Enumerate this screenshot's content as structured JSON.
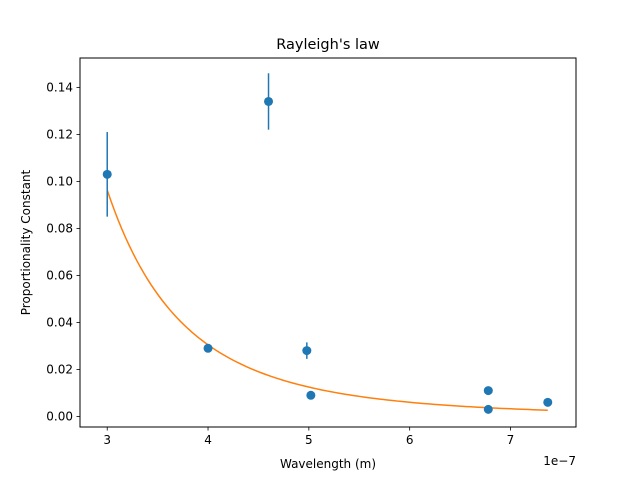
{
  "chart_data": {
    "type": "scatter",
    "title": "Rayleigh's law",
    "xlabel": "Wavelength (m)",
    "ylabel": "Proportionality Constant",
    "x_offset_label": "1e−7",
    "xlim": [
      2.73,
      7.65
    ],
    "ylim": [
      -0.0045,
      0.1525
    ],
    "x_ticks": [
      3,
      4,
      5,
      6,
      7
    ],
    "x_tick_labels": [
      "3",
      "4",
      "5",
      "6",
      "7"
    ],
    "y_ticks": [
      0.0,
      0.02,
      0.04,
      0.06,
      0.08,
      0.1,
      0.12,
      0.14
    ],
    "y_tick_labels": [
      "0.00",
      "0.02",
      "0.04",
      "0.06",
      "0.08",
      "0.10",
      "0.12",
      "0.14"
    ],
    "grid": false,
    "series": [
      {
        "kind": "errorbar-scatter",
        "color": "#1f77b4",
        "points": [
          {
            "x": 3.0,
            "y": 0.103,
            "yerr": 0.018
          },
          {
            "x": 4.0,
            "y": 0.029,
            "yerr": 0.001
          },
          {
            "x": 4.6,
            "y": 0.134,
            "yerr": 0.012
          },
          {
            "x": 4.98,
            "y": 0.028,
            "yerr": 0.0035
          },
          {
            "x": 5.02,
            "y": 0.009,
            "yerr": 0.0005
          },
          {
            "x": 6.78,
            "y": 0.011,
            "yerr": 0.0005
          },
          {
            "x": 6.78,
            "y": 0.003,
            "yerr": 0.0005
          },
          {
            "x": 7.37,
            "y": 0.006,
            "yerr": 0.0005
          }
        ]
      },
      {
        "kind": "fit-line",
        "color": "#ff7f0e",
        "model": "y = A / x^4",
        "A": 7.8,
        "x_range": [
          3.0,
          7.37
        ]
      }
    ]
  }
}
